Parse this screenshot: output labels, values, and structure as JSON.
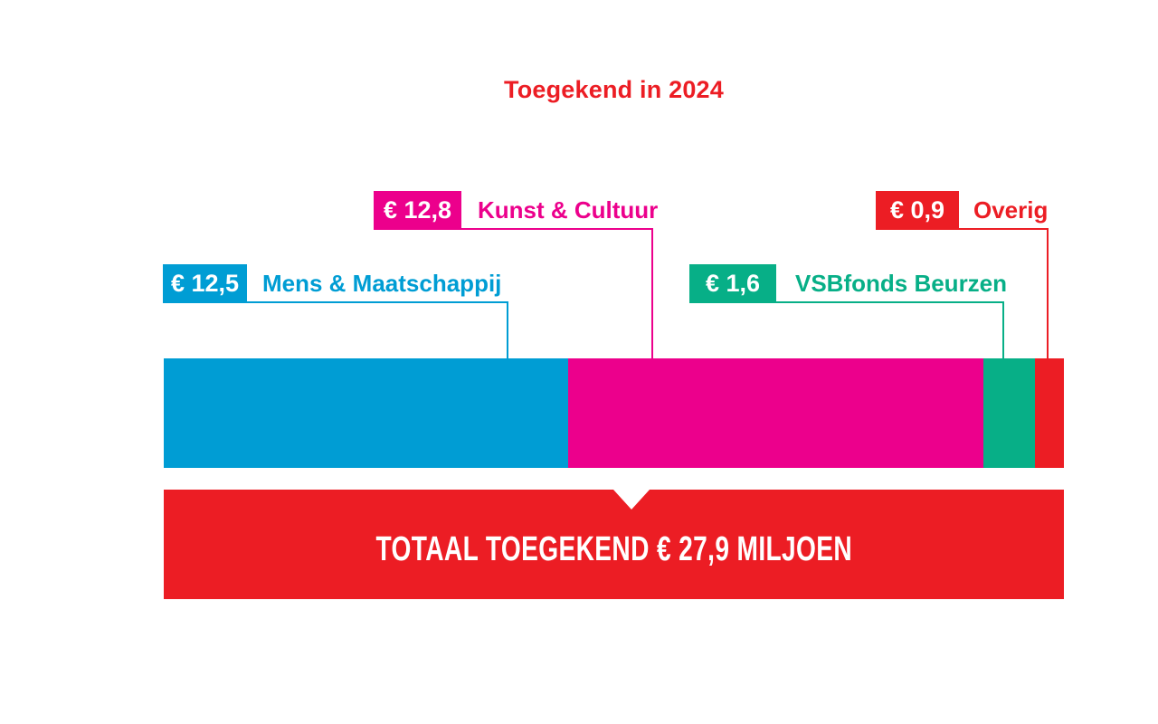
{
  "title": "Toegekend in 2024",
  "colors": {
    "title": "#EC1D24",
    "background": "#FFFFFF"
  },
  "chart_data": {
    "type": "bar",
    "subtype": "stacked-horizontal-infographic",
    "title": "Toegekend in 2024",
    "unit": "miljoen euro",
    "segments": [
      {
        "label": "Mens & Maatschappij",
        "value": 12.5,
        "value_label": "€ 12,5",
        "color": "#009DD4"
      },
      {
        "label": "Kunst & Cultuur",
        "value": 12.8,
        "value_label": "€ 12,8",
        "color": "#EC008C"
      },
      {
        "label": "VSBfonds Beurzen",
        "value": 1.6,
        "value_label": "€ 1,6",
        "color": "#07AF87"
      },
      {
        "label": "Overig",
        "value": 0.9,
        "value_label": "€ 0,9",
        "color": "#EC1D24"
      }
    ],
    "total": {
      "value": 27.9,
      "label": "TOTAAL TOEGEKEND € 27,9 MILJOEN",
      "color": "#EC1D24"
    },
    "layout": {
      "legend_position": "callouts-above-bar",
      "grid": false,
      "axes": false
    }
  }
}
